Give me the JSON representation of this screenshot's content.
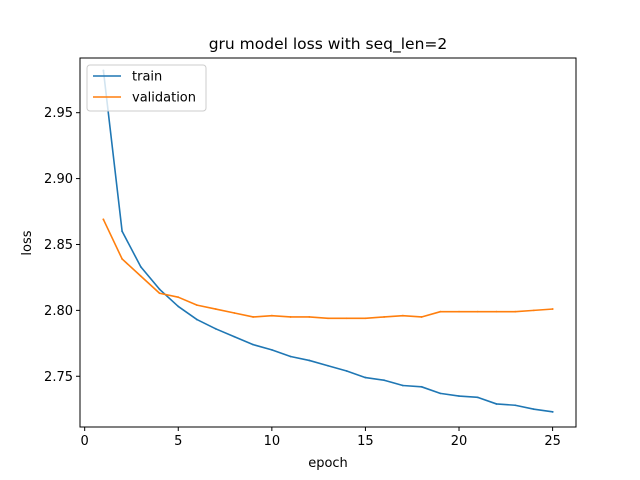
{
  "chart_data": {
    "type": "line",
    "title": "gru model loss with seq_len=2",
    "xlabel": "epoch",
    "ylabel": "loss",
    "xlim": [
      -0.25,
      26.25
    ],
    "ylim": [
      2.7115,
      2.9915
    ],
    "xticks": [
      0,
      5,
      10,
      15,
      20,
      25
    ],
    "xtick_labels": [
      "0",
      "5",
      "10",
      "15",
      "20",
      "25"
    ],
    "yticks": [
      2.75,
      2.8,
      2.85,
      2.9,
      2.95
    ],
    "ytick_labels": [
      "2.75",
      "2.80",
      "2.85",
      "2.90",
      "2.95"
    ],
    "grid": false,
    "legend_position": "upper-left",
    "x": [
      1,
      2,
      3,
      4,
      5,
      6,
      7,
      8,
      9,
      10,
      11,
      12,
      13,
      14,
      15,
      16,
      17,
      18,
      19,
      20,
      21,
      22,
      23,
      24,
      25
    ],
    "series": [
      {
        "name": "train",
        "color": "#1f77b4",
        "values": [
          2.982,
          2.86,
          2.833,
          2.816,
          2.803,
          2.793,
          2.786,
          2.78,
          2.774,
          2.77,
          2.765,
          2.762,
          2.758,
          2.754,
          2.749,
          2.747,
          2.743,
          2.742,
          2.737,
          2.735,
          2.734,
          2.729,
          2.728,
          2.725,
          2.723
        ]
      },
      {
        "name": "validation",
        "color": "#ff7f0e",
        "values": [
          2.869,
          2.839,
          2.826,
          2.813,
          2.81,
          2.804,
          2.801,
          2.798,
          2.795,
          2.796,
          2.795,
          2.795,
          2.794,
          2.794,
          2.794,
          2.795,
          2.796,
          2.795,
          2.799,
          2.799,
          2.799,
          2.799,
          2.799,
          2.8,
          2.801
        ]
      }
    ]
  }
}
